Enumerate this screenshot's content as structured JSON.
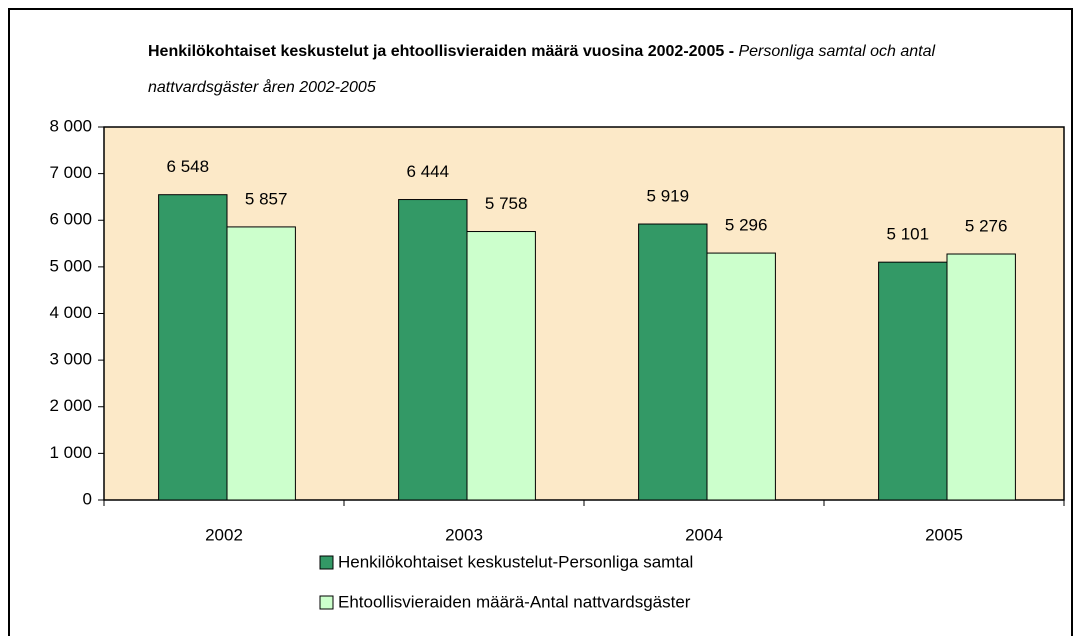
{
  "chart_data": {
    "type": "bar",
    "title": "Henkilökohtaiset keskustelut ja ehtoollisvieraiden määrä  vuosina 2002-2005 - ",
    "subtitle": "Personliga samtal och antal nattvardsgäster åren 2002-2005",
    "categories": [
      "2002",
      "2003",
      "2004",
      "2005"
    ],
    "series": [
      {
        "name": "Henkilökohtaiset keskustelut-Personliga samtal",
        "color": "#339966",
        "values": [
          6548,
          6444,
          5919,
          5101
        ],
        "value_labels": [
          "6 548",
          "6 444",
          "5 919",
          "5 101"
        ]
      },
      {
        "name": "Ehtoollisvieraiden määrä-Antal nattvardsgäster",
        "color": "#ccffcc",
        "values": [
          5857,
          5758,
          5296,
          5276
        ],
        "value_labels": [
          "5 857",
          "5 758",
          "5 296",
          "5 276"
        ]
      }
    ],
    "ylim": [
      0,
      8000
    ],
    "yticks": [
      0,
      {
        "value": 1000,
        "label": "1 000"
      },
      {
        "value": 2000,
        "label": "2 000"
      },
      {
        "value": 3000,
        "label": "3 000"
      },
      {
        "value": 4000,
        "label": "4 000"
      },
      {
        "value": 5000,
        "label": "5 000"
      },
      {
        "value": 6000,
        "label": "6 000"
      },
      {
        "value": 7000,
        "label": "7 000"
      },
      {
        "value": 8000,
        "label": "8 000"
      }
    ],
    "plot_background": "#fce9c8",
    "legend": "bottom"
  }
}
